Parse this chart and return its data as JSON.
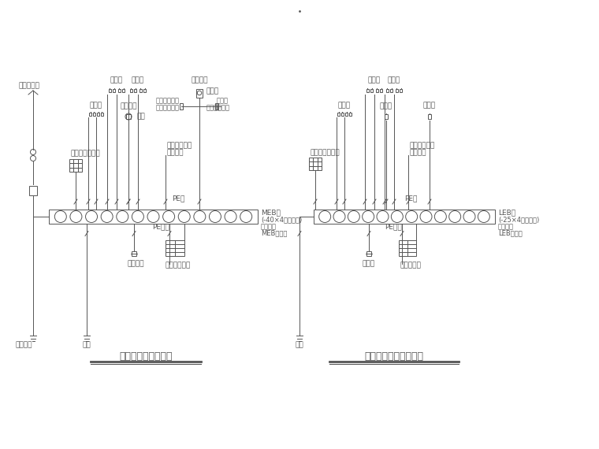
{
  "bg_color": "#ffffff",
  "line_color": "#555555",
  "title1": "总等电位联结示意图",
  "title2": "局部等电位联结示意图",
  "meb_label1": "MEB线",
  "meb_label2": "(-40×4镀锌扁钢)",
  "leb_label1": "LEB线",
  "leb_label2": "(-25×4镀锌扁钢)",
  "busbar_label1a": "接地母排",
  "busbar_label1b": "MEB端子板",
  "busbar_label2a": "接地母排",
  "busbar_label2b": "LEB端子板",
  "left_labels_top": [
    "采暖管",
    "热水管",
    "总燃气管"
  ],
  "left_labels_mid": [
    "空调管",
    "总给水管"
  ],
  "right_labels_top": [
    "采暖管",
    "热水管",
    "燃气管"
  ],
  "right_labels_mid": [
    "空调管",
    "给水管"
  ],
  "figw": 7.6,
  "figh": 5.7,
  "dpi": 100
}
